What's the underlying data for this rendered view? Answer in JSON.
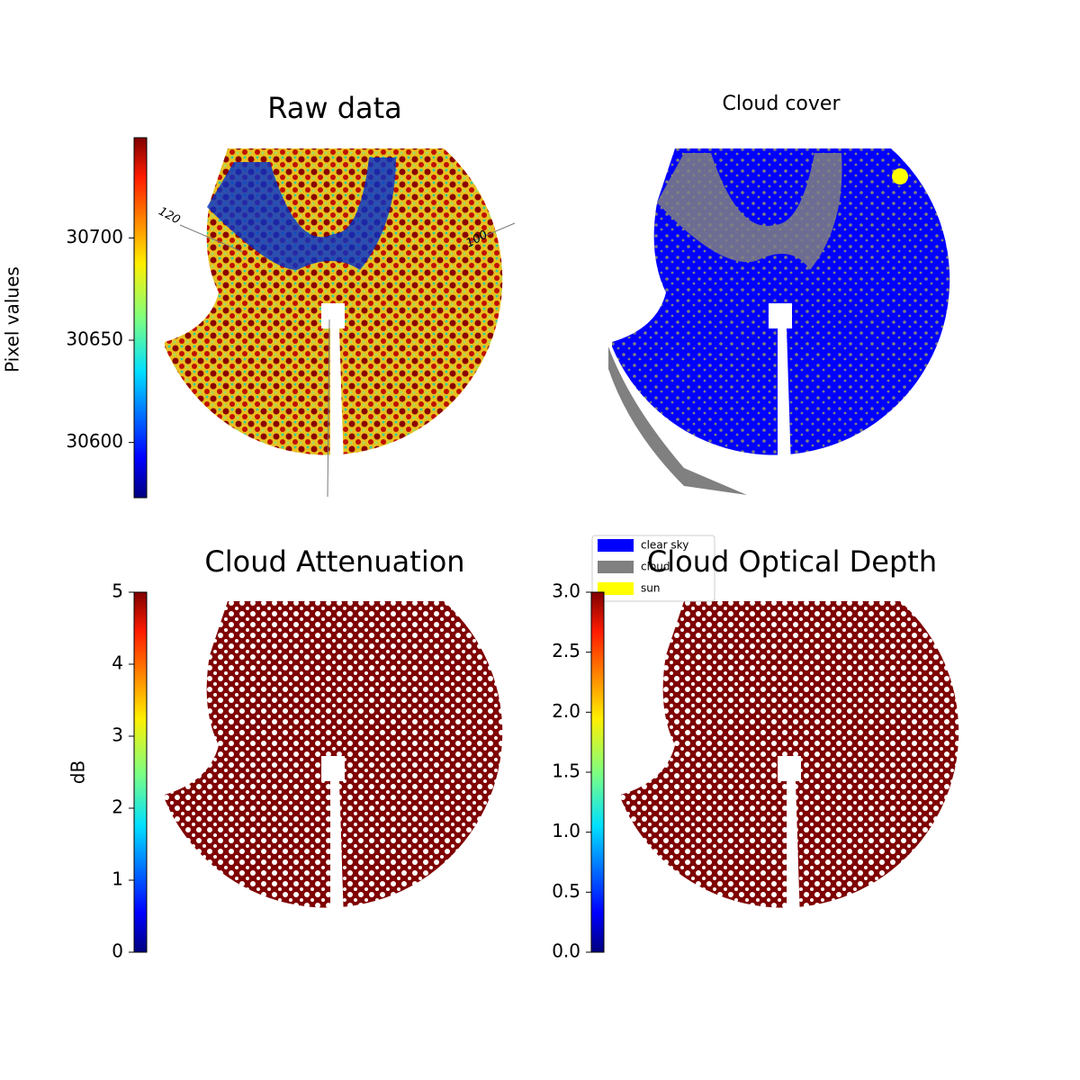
{
  "chart_data": [
    {
      "type": "image",
      "title": "Raw data",
      "ylabel": "Pixel values",
      "ylim": [
        30573,
        30749
      ],
      "yticks": [
        30600,
        30650,
        30700
      ],
      "colormap": "jet",
      "annotations": [
        "120",
        "100"
      ]
    },
    {
      "type": "image",
      "title": "Cloud cover",
      "legend": {
        "loc": "lower left",
        "entries": [
          {
            "name": "clear sky",
            "color": "#0000ff"
          },
          {
            "name": "cloud",
            "color": "#808080"
          },
          {
            "name": "sun",
            "color": "#ffff00"
          }
        ]
      }
    },
    {
      "type": "image",
      "title": "Cloud Attenuation",
      "ylabel": "dB",
      "ylim": [
        0,
        5
      ],
      "yticks": [
        0,
        1,
        2,
        3,
        4,
        5
      ],
      "colormap": "jet"
    },
    {
      "type": "image",
      "title": "Cloud Optical Depth",
      "ylim": [
        0,
        3
      ],
      "yticks": [
        {
          "value": 0,
          "label": "0.0"
        },
        {
          "value": 0.5,
          "label": "0.5"
        },
        {
          "value": 1,
          "label": "1.0"
        },
        {
          "value": 1.5,
          "label": "1.5"
        },
        {
          "value": 2,
          "label": "2.0"
        },
        {
          "value": 2.5,
          "label": "2.5"
        },
        {
          "value": 3,
          "label": "3.0"
        }
      ],
      "colormap": "jet"
    }
  ]
}
